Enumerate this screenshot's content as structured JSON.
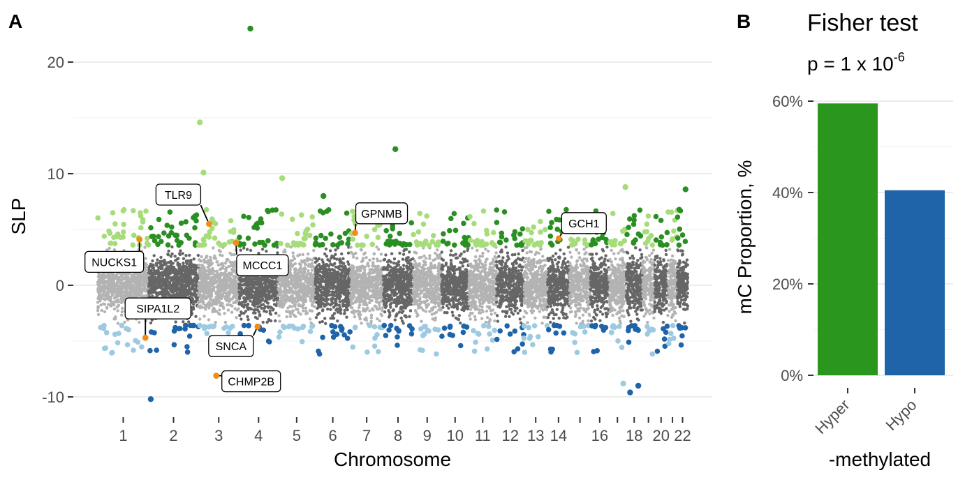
{
  "panels": {
    "a": {
      "letter": "A",
      "ylabel": "SLP",
      "xlabel": "Chromosome",
      "y_ticks": [
        {
          "value": 20,
          "label": "20"
        },
        {
          "value": 10,
          "label": "10"
        },
        {
          "value": 0,
          "label": "0"
        },
        {
          "value": -10,
          "label": "-10"
        }
      ]
    },
    "b": {
      "letter": "B",
      "title": "Fisher test",
      "p_text": "p = 1 x 10",
      "p_exponent": "-6",
      "ylabel": "mC Proportion, %",
      "xlabel": "-methylated"
    }
  },
  "chart_data": [
    {
      "type": "scatter",
      "subtype": "manhattan",
      "ylim": [
        -11.5,
        24
      ],
      "grid": true,
      "threshold_hyper": 3.5,
      "threshold_hypo": -3.5,
      "colors": {
        "odd_bg": "#b3b3b3",
        "even_bg": "#666666",
        "odd_hyper": "#a6dc7a",
        "even_hyper": "#2a8f22",
        "odd_hypo": "#9ecae1",
        "even_hypo": "#1f63a8",
        "highlight": "#f28c15"
      },
      "chromosomes": [
        {
          "chr": "1",
          "label": "1",
          "start": 0,
          "end": 248
        },
        {
          "chr": "2",
          "label": "2",
          "start": 248,
          "end": 490
        },
        {
          "chr": "3",
          "label": "3",
          "start": 490,
          "end": 688
        },
        {
          "chr": "4",
          "label": "4",
          "start": 688,
          "end": 878
        },
        {
          "chr": "5",
          "label": "5",
          "start": 878,
          "end": 1059
        },
        {
          "chr": "6",
          "label": "6",
          "start": 1059,
          "end": 1230
        },
        {
          "chr": "7",
          "label": "7",
          "start": 1230,
          "end": 1389
        },
        {
          "chr": "8",
          "label": "8",
          "start": 1389,
          "end": 1535
        },
        {
          "chr": "9",
          "label": "9",
          "start": 1535,
          "end": 1673
        },
        {
          "chr": "10",
          "label": "10",
          "start": 1673,
          "end": 1807
        },
        {
          "chr": "11",
          "label": "11",
          "start": 1807,
          "end": 1942
        },
        {
          "chr": "12",
          "label": "12",
          "start": 1942,
          "end": 2075
        },
        {
          "chr": "13",
          "label": "13",
          "start": 2075,
          "end": 2190
        },
        {
          "chr": "14",
          "label": "14",
          "start": 2190,
          "end": 2297
        },
        {
          "chr": "15",
          "label": "",
          "start": 2297,
          "end": 2399
        },
        {
          "chr": "16",
          "label": "16",
          "start": 2399,
          "end": 2489
        },
        {
          "chr": "17",
          "label": "",
          "start": 2489,
          "end": 2572
        },
        {
          "chr": "18",
          "label": "18",
          "start": 2572,
          "end": 2652
        },
        {
          "chr": "19",
          "label": "",
          "start": 2652,
          "end": 2711
        },
        {
          "chr": "20",
          "label": "20",
          "start": 2711,
          "end": 2775
        },
        {
          "chr": "21",
          "label": "",
          "start": 2775,
          "end": 2822
        },
        {
          "chr": "22",
          "label": "22",
          "start": 2822,
          "end": 2873
        }
      ],
      "notable_points": [
        {
          "chr": "4",
          "pos": 55,
          "y": 23.0
        },
        {
          "chr": "3",
          "pos": 7,
          "y": 14.6
        },
        {
          "chr": "3",
          "pos": 25,
          "y": 10.1
        },
        {
          "chr": "8",
          "pos": 60,
          "y": 12.2
        },
        {
          "chr": "5",
          "pos": 20,
          "y": 9.6
        },
        {
          "chr": "6",
          "pos": 40,
          "y": 8.0
        },
        {
          "chr": "17",
          "pos": 80,
          "y": 8.8
        },
        {
          "chr": "22",
          "pos": 40,
          "y": 8.6
        },
        {
          "chr": "2",
          "pos": 10,
          "y": -10.2
        },
        {
          "chr": "18",
          "pos": 20,
          "y": -9.6
        },
        {
          "chr": "17",
          "pos": 70,
          "y": -8.8
        },
        {
          "chr": "18",
          "pos": 60,
          "y": -9.0
        }
      ],
      "highlighted_genes": [
        {
          "gene": "NUCKS1",
          "chr": "1",
          "pos": 203,
          "y": 4.1
        },
        {
          "gene": "TLR9",
          "chr": "3",
          "pos": 52,
          "y": 5.5
        },
        {
          "gene": "MCCC1",
          "chr": "3",
          "pos": 183,
          "y": 3.8
        },
        {
          "gene": "GPNMB",
          "chr": "7",
          "pos": 23,
          "y": 4.7
        },
        {
          "gene": "GCH1",
          "chr": "14",
          "pos": 55,
          "y": 4.2
        },
        {
          "gene": "SIPA1L2",
          "chr": "1",
          "pos": 232,
          "y": -4.7
        },
        {
          "gene": "SNCA",
          "chr": "4",
          "pos": 90,
          "y": -3.7
        },
        {
          "gene": "CHMP2B",
          "chr": "3",
          "pos": 87,
          "y": -8.1
        }
      ]
    },
    {
      "type": "bar",
      "categories": [
        "Hyper",
        "Hypo"
      ],
      "values": [
        59.5,
        40.5
      ],
      "unit": "%",
      "ylim": [
        0,
        60
      ],
      "y_ticks": [
        {
          "value": 0,
          "label": "0%"
        },
        {
          "value": 20,
          "label": "20%"
        },
        {
          "value": 40,
          "label": "40%"
        },
        {
          "value": 60,
          "label": "60%"
        }
      ],
      "colors": [
        "#2a961e",
        "#1f63a8"
      ],
      "grid": true
    }
  ]
}
